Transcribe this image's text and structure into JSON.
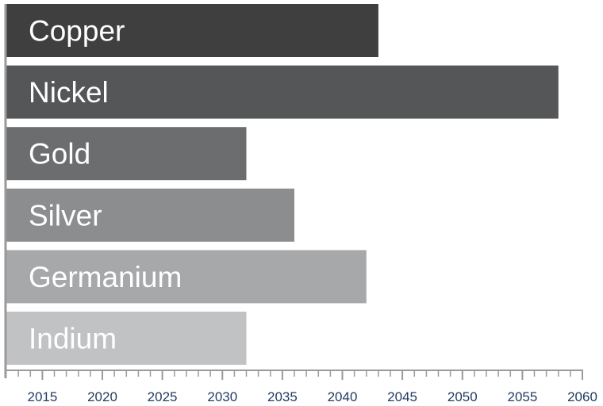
{
  "chart_data": {
    "type": "bar",
    "orientation": "horizontal",
    "categories": [
      "Copper",
      "Nickel",
      "Gold",
      "Silver",
      "Germanium",
      "Indium"
    ],
    "values": [
      2043,
      2058,
      2032,
      2036,
      2042,
      2032
    ],
    "xlim": [
      2012,
      2060
    ],
    "x_ticks": [
      "2015",
      "2020",
      "2025",
      "2030",
      "2035",
      "2040",
      "2045",
      "2050",
      "2055",
      "2060"
    ],
    "x_tick_values": [
      2015,
      2020,
      2025,
      2030,
      2035,
      2040,
      2045,
      2050,
      2055,
      2060
    ],
    "minor_tick_step": 1,
    "colors": [
      "#3f3f3f",
      "#555657",
      "#6c6d6f",
      "#8c8d8f",
      "#a7a8aa",
      "#c1c2c4"
    ],
    "grid": false,
    "legend": "none"
  }
}
